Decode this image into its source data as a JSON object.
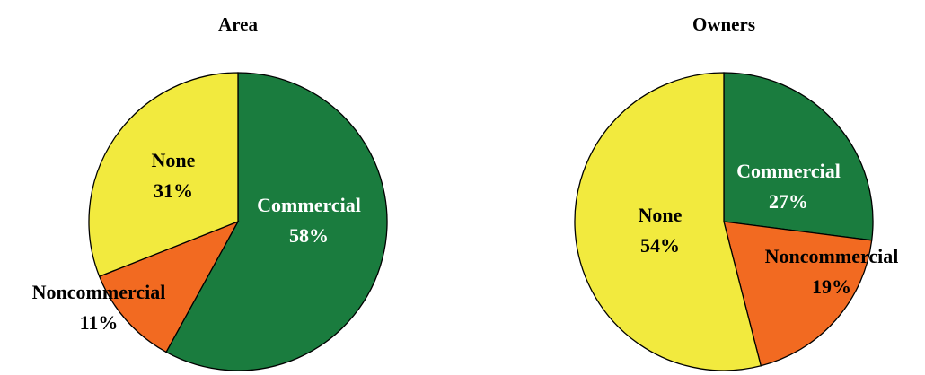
{
  "chart_data": [
    {
      "type": "pie",
      "title": "Area",
      "slices": [
        {
          "label": "Commercial",
          "value": 58,
          "value_label": "58%",
          "color": "#1a7c3e",
          "text_color": "#ffffff"
        },
        {
          "label": "Noncommercial",
          "value": 11,
          "value_label": "11%",
          "color": "#f26a21",
          "text_color": "#000000"
        },
        {
          "label": "None",
          "value": 31,
          "value_label": "31%",
          "color": "#f2ea3e",
          "text_color": "#000000"
        }
      ]
    },
    {
      "type": "pie",
      "title": "Owners",
      "slices": [
        {
          "label": "Commercial",
          "value": 27,
          "value_label": "27%",
          "color": "#1a7c3e",
          "text_color": "#ffffff"
        },
        {
          "label": "Noncommercial",
          "value": 19,
          "value_label": "19%",
          "color": "#f26a21",
          "text_color": "#000000"
        },
        {
          "label": "None",
          "value": 54,
          "value_label": "54%",
          "color": "#f2ea3e",
          "text_color": "#000000"
        }
      ]
    }
  ]
}
